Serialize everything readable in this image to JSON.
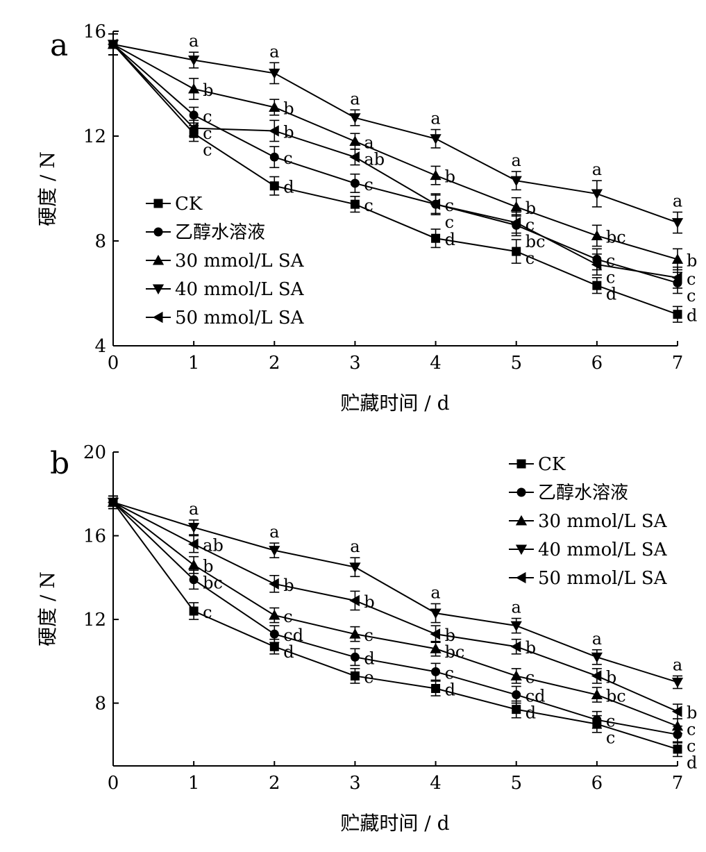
{
  "chart_data": [
    {
      "type": "line",
      "panel_label": "a",
      "xlabel": "贮藏时间 / d",
      "ylabel": "硬度 / N",
      "x": [
        0,
        1,
        2,
        3,
        4,
        5,
        6,
        7
      ],
      "xlim": [
        0,
        7
      ],
      "ylim": [
        4,
        16
      ],
      "yticks": [
        4,
        8,
        12,
        16
      ],
      "legend_position": "middle-left",
      "series": [
        {
          "name": "CK",
          "marker": "square",
          "values": [
            15.5,
            12.1,
            10.1,
            9.4,
            8.1,
            7.6,
            6.3,
            5.2
          ],
          "errors": [
            0.4,
            0.3,
            0.35,
            0.3,
            0.35,
            0.45,
            0.3,
            0.3
          ],
          "sig": [
            "",
            "c",
            "d",
            "c",
            "d",
            "c",
            "d",
            "d"
          ]
        },
        {
          "name": "乙醇水溶液",
          "marker": "circle",
          "values": [
            15.5,
            12.8,
            11.2,
            10.2,
            9.4,
            8.6,
            7.3,
            6.4
          ],
          "errors": [
            0.4,
            0.3,
            0.4,
            0.35,
            0.35,
            0.4,
            0.4,
            0.4
          ],
          "sig": [
            "",
            "c",
            "c",
            "c",
            "c",
            "bc",
            "c",
            "c"
          ]
        },
        {
          "name": "30 mmol/L SA",
          "marker": "triangle-up",
          "values": [
            15.5,
            13.8,
            13.1,
            11.8,
            10.5,
            9.3,
            8.2,
            7.3
          ],
          "errors": [
            0.4,
            0.4,
            0.3,
            0.3,
            0.35,
            0.35,
            0.4,
            0.4
          ],
          "sig": [
            "",
            "b",
            "b",
            "a",
            "b",
            "b",
            "bc",
            "b"
          ]
        },
        {
          "name": "40 mmol/L SA",
          "marker": "triangle-down",
          "values": [
            15.5,
            14.9,
            14.4,
            12.7,
            11.9,
            10.3,
            9.8,
            8.7
          ],
          "errors": [
            0.4,
            0.3,
            0.4,
            0.3,
            0.35,
            0.35,
            0.5,
            0.4
          ],
          "sig": [
            "",
            "a",
            "a",
            "a",
            "a",
            "a",
            "a",
            "a"
          ]
        },
        {
          "name": "50 mmol/L SA",
          "marker": "triangle-left",
          "values": [
            15.5,
            12.3,
            12.2,
            11.2,
            9.4,
            8.7,
            7.1,
            6.6
          ],
          "errors": [
            0.4,
            0.3,
            0.4,
            0.3,
            0.4,
            0.4,
            0.4,
            0.4
          ],
          "sig": [
            "",
            "c",
            "b",
            "ab",
            "c",
            "c",
            "c",
            "c"
          ]
        }
      ]
    },
    {
      "type": "line",
      "panel_label": "b",
      "xlabel": "贮藏时间 / d",
      "ylabel": "硬度 / N",
      "x": [
        0,
        1,
        2,
        3,
        4,
        5,
        6,
        7
      ],
      "xlim": [
        0,
        7
      ],
      "ylim": [
        5,
        20
      ],
      "yticks": [
        8,
        12,
        16,
        20
      ],
      "legend_position": "top-right",
      "series": [
        {
          "name": "CK",
          "marker": "square",
          "values": [
            17.6,
            12.4,
            10.7,
            9.3,
            8.7,
            7.7,
            7.0,
            5.8
          ],
          "errors": [
            0.3,
            0.4,
            0.35,
            0.35,
            0.35,
            0.4,
            0.4,
            0.35
          ],
          "sig": [
            "",
            "c",
            "d",
            "e",
            "d",
            "d",
            "c",
            "d"
          ]
        },
        {
          "name": "乙醇水溶液",
          "marker": "circle",
          "values": [
            17.6,
            13.9,
            11.3,
            10.2,
            9.5,
            8.4,
            7.2,
            6.5
          ],
          "errors": [
            0.3,
            0.45,
            0.4,
            0.4,
            0.4,
            0.4,
            0.4,
            0.4
          ],
          "sig": [
            "",
            "bc",
            "cd",
            "d",
            "c",
            "cd",
            "c",
            "c"
          ]
        },
        {
          "name": "30 mmol/L SA",
          "marker": "triangle-up",
          "values": [
            17.6,
            14.6,
            12.2,
            11.3,
            10.6,
            9.3,
            8.4,
            6.9
          ],
          "errors": [
            0.3,
            0.4,
            0.35,
            0.35,
            0.35,
            0.35,
            0.35,
            0.35
          ],
          "sig": [
            "",
            "b",
            "c",
            "c",
            "bc",
            "c",
            "bc",
            "c"
          ]
        },
        {
          "name": "40 mmol/L SA",
          "marker": "triangle-down",
          "values": [
            17.6,
            16.4,
            15.3,
            14.5,
            12.3,
            11.7,
            10.2,
            9.0
          ],
          "errors": [
            0.3,
            0.35,
            0.35,
            0.45,
            0.45,
            0.35,
            0.35,
            0.3
          ],
          "sig": [
            "",
            "a",
            "a",
            "a",
            "a",
            "a",
            "a",
            "a"
          ]
        },
        {
          "name": "50 mmol/L SA",
          "marker": "triangle-left",
          "values": [
            17.6,
            15.6,
            13.7,
            12.9,
            11.3,
            10.7,
            9.3,
            7.6
          ],
          "errors": [
            0.3,
            0.4,
            0.4,
            0.45,
            0.4,
            0.35,
            0.35,
            0.35
          ],
          "sig": [
            "",
            "ab",
            "b",
            "b",
            "b",
            "b",
            "b",
            "b"
          ]
        }
      ]
    }
  ]
}
